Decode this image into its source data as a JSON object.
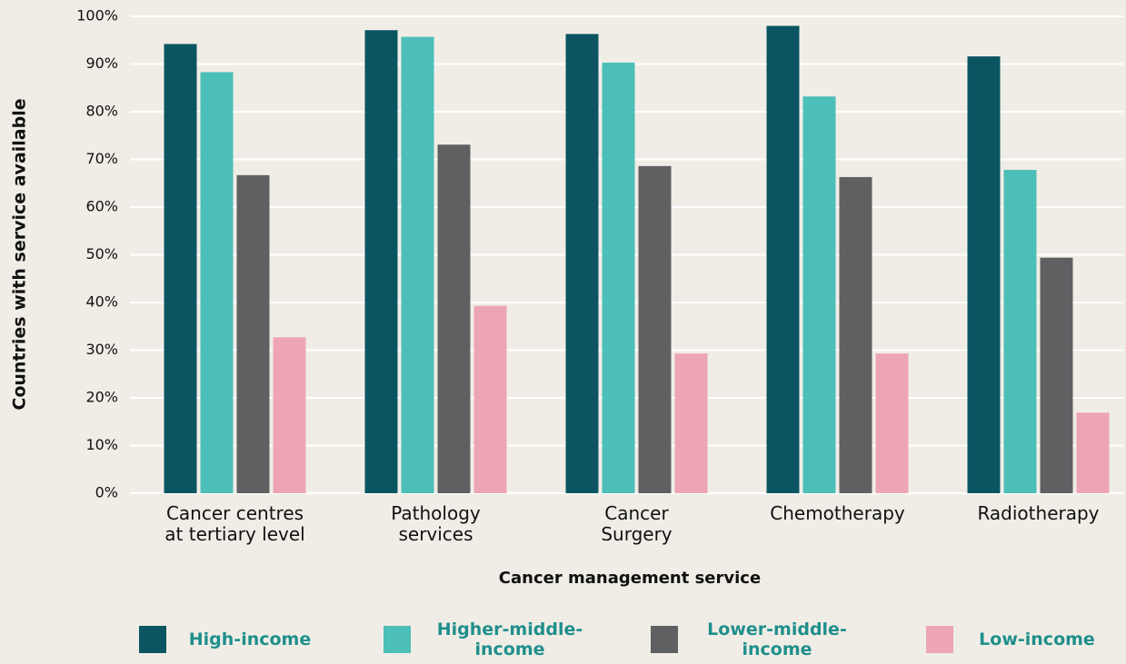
{
  "chart_data": {
    "type": "bar",
    "x_label": "Cancer management service",
    "y_label": "Countries with service available",
    "categories": [
      "Cancer centres\nat tertiary level",
      "Pathology\nservices",
      "Cancer\nSurgery",
      "Chemotherapy",
      "Radiotherapy"
    ],
    "series": [
      {
        "name": "High-income",
        "color": "#0b5563",
        "values": [
          94.2,
          97.1,
          96.3,
          98.0,
          91.6
        ]
      },
      {
        "name": "Higher-middle-income",
        "color": "#4bbfb8",
        "values": [
          88.3,
          95.7,
          90.3,
          83.2,
          67.8
        ]
      },
      {
        "name": "Lower-middle-income",
        "color": "#5f6062",
        "values": [
          66.7,
          73.1,
          68.6,
          66.3,
          49.4
        ]
      },
      {
        "name": "Low-income",
        "color": "#eda5b4",
        "values": [
          32.7,
          39.3,
          29.3,
          29.3,
          16.9
        ]
      }
    ],
    "ylim": [
      0,
      100
    ],
    "yticks": [
      {
        "value": 0,
        "label": "0%"
      },
      {
        "value": 10,
        "label": "10%"
      },
      {
        "value": 20,
        "label": "20%"
      },
      {
        "value": 30,
        "label": "30%"
      },
      {
        "value": 40,
        "label": "40%"
      },
      {
        "value": 50,
        "label": "50%"
      },
      {
        "value": 60,
        "label": "60%"
      },
      {
        "value": 70,
        "label": "70%"
      },
      {
        "value": 80,
        "label": "80%"
      },
      {
        "value": 90,
        "label": "90%"
      },
      {
        "value": 100,
        "label": "100%"
      }
    ],
    "grid": true,
    "legend": "bottom"
  }
}
